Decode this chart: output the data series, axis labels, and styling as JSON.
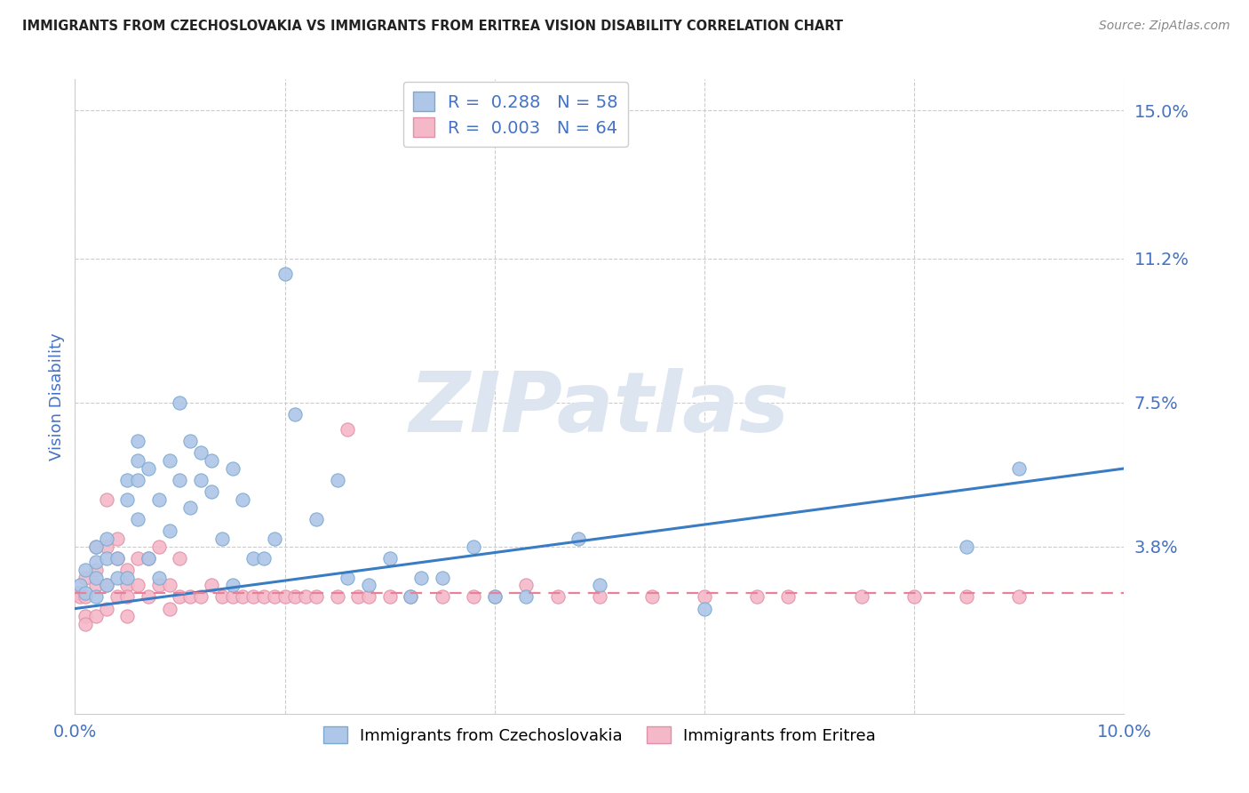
{
  "title": "IMMIGRANTS FROM CZECHOSLOVAKIA VS IMMIGRANTS FROM ERITREA VISION DISABILITY CORRELATION CHART",
  "source": "Source: ZipAtlas.com",
  "ylabel": "Vision Disability",
  "xlim": [
    0.0,
    0.1
  ],
  "ylim": [
    -0.005,
    0.158
  ],
  "ytick_labels": [
    "15.0%",
    "11.2%",
    "7.5%",
    "3.8%"
  ],
  "ytick_values": [
    0.15,
    0.112,
    0.075,
    0.038
  ],
  "xtick_values": [
    0.0,
    0.02,
    0.04,
    0.06,
    0.08,
    0.1
  ],
  "legend_entries": [
    {
      "label": "R =  0.288   N = 58",
      "color": "#aec6e8",
      "edge_color": "#7aaad0"
    },
    {
      "label": "R =  0.003   N = 64",
      "color": "#f4b8c8",
      "edge_color": "#e090a8"
    }
  ],
  "legend_bottom": [
    "Immigrants from Czechoslovakia",
    "Immigrants from Eritrea"
  ],
  "legend_bottom_colors": [
    "#aec6e8",
    "#f4b8c8"
  ],
  "legend_bottom_edges": [
    "#7aaad0",
    "#e090a8"
  ],
  "series_czechoslovakia": {
    "color": "#aec6e8",
    "edge_color": "#7aaad0",
    "x": [
      0.0005,
      0.001,
      0.001,
      0.002,
      0.002,
      0.002,
      0.002,
      0.003,
      0.003,
      0.003,
      0.004,
      0.004,
      0.005,
      0.005,
      0.005,
      0.006,
      0.006,
      0.006,
      0.006,
      0.007,
      0.007,
      0.008,
      0.008,
      0.009,
      0.009,
      0.01,
      0.01,
      0.011,
      0.011,
      0.012,
      0.012,
      0.013,
      0.013,
      0.014,
      0.015,
      0.015,
      0.016,
      0.017,
      0.018,
      0.019,
      0.02,
      0.021,
      0.023,
      0.025,
      0.026,
      0.028,
      0.03,
      0.032,
      0.033,
      0.035,
      0.038,
      0.04,
      0.043,
      0.048,
      0.05,
      0.06,
      0.085,
      0.09
    ],
    "y": [
      0.028,
      0.032,
      0.026,
      0.038,
      0.034,
      0.03,
      0.025,
      0.04,
      0.035,
      0.028,
      0.035,
      0.03,
      0.055,
      0.05,
      0.03,
      0.065,
      0.06,
      0.055,
      0.045,
      0.058,
      0.035,
      0.05,
      0.03,
      0.06,
      0.042,
      0.075,
      0.055,
      0.065,
      0.048,
      0.062,
      0.055,
      0.06,
      0.052,
      0.04,
      0.058,
      0.028,
      0.05,
      0.035,
      0.035,
      0.04,
      0.108,
      0.072,
      0.045,
      0.055,
      0.03,
      0.028,
      0.035,
      0.025,
      0.03,
      0.03,
      0.038,
      0.025,
      0.025,
      0.04,
      0.028,
      0.022,
      0.038,
      0.058
    ]
  },
  "series_eritrea": {
    "color": "#f4b8c8",
    "edge_color": "#e090a8",
    "x": [
      0.0003,
      0.0005,
      0.001,
      0.001,
      0.001,
      0.001,
      0.002,
      0.002,
      0.002,
      0.002,
      0.003,
      0.003,
      0.003,
      0.003,
      0.004,
      0.004,
      0.004,
      0.005,
      0.005,
      0.005,
      0.005,
      0.006,
      0.006,
      0.007,
      0.007,
      0.008,
      0.008,
      0.009,
      0.009,
      0.01,
      0.01,
      0.011,
      0.012,
      0.013,
      0.014,
      0.015,
      0.016,
      0.017,
      0.018,
      0.019,
      0.02,
      0.021,
      0.022,
      0.023,
      0.025,
      0.026,
      0.027,
      0.028,
      0.03,
      0.032,
      0.035,
      0.038,
      0.04,
      0.043,
      0.046,
      0.05,
      0.055,
      0.06,
      0.065,
      0.068,
      0.075,
      0.08,
      0.085,
      0.09
    ],
    "y": [
      0.026,
      0.025,
      0.03,
      0.025,
      0.02,
      0.018,
      0.038,
      0.032,
      0.028,
      0.02,
      0.05,
      0.038,
      0.028,
      0.022,
      0.04,
      0.035,
      0.025,
      0.032,
      0.028,
      0.025,
      0.02,
      0.035,
      0.028,
      0.035,
      0.025,
      0.038,
      0.028,
      0.028,
      0.022,
      0.035,
      0.025,
      0.025,
      0.025,
      0.028,
      0.025,
      0.025,
      0.025,
      0.025,
      0.025,
      0.025,
      0.025,
      0.025,
      0.025,
      0.025,
      0.025,
      0.068,
      0.025,
      0.025,
      0.025,
      0.025,
      0.025,
      0.025,
      0.025,
      0.028,
      0.025,
      0.025,
      0.025,
      0.025,
      0.025,
      0.025,
      0.025,
      0.025,
      0.025,
      0.025
    ]
  },
  "trendline_czechoslovakia": {
    "color": "#3a7cc4",
    "x_start": 0.0,
    "x_end": 0.1,
    "y_start": 0.022,
    "y_end": 0.058,
    "linestyle": "solid",
    "linewidth": 2.2
  },
  "trendline_eritrea": {
    "color": "#e8809a",
    "x_start": 0.0,
    "x_end": 0.1,
    "y_start": 0.026,
    "y_end": 0.026,
    "linestyle": "dashed",
    "linewidth": 1.6,
    "dashes": [
      6,
      4
    ]
  },
  "watermark_text": "ZIPatlas",
  "watermark_color": "#dde6f0",
  "background_color": "#ffffff",
  "grid_color": "#cccccc",
  "title_color": "#222222",
  "axis_label_color": "#4472c4",
  "tick_label_color": "#4472c4",
  "legend_text_color": "#4472c4",
  "bottom_border_color": "#cccccc"
}
